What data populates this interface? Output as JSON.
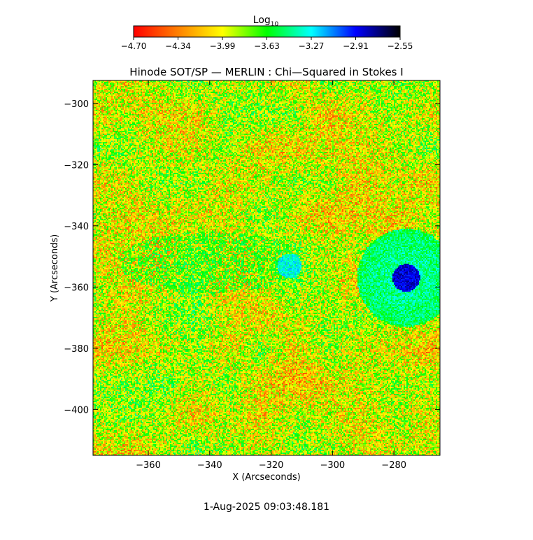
{
  "chart_data": {
    "type": "heatmap",
    "title": "Hinode SOT/SP — MERLIN : Chi—Squared in Stokes I",
    "xlabel": "X (Arcseconds)",
    "ylabel": "Y (Arcseconds)",
    "xlim": [
      -378,
      -265
    ],
    "ylim": [
      -415,
      -292.5
    ],
    "x_ticks": [
      -360,
      -340,
      -320,
      -300,
      -280
    ],
    "x_tick_labels": [
      "−360",
      "−340",
      "−320",
      "−300",
      "−280"
    ],
    "y_ticks": [
      -300,
      -320,
      -340,
      -360,
      -380,
      -400
    ],
    "y_tick_labels": [
      "−300",
      "−320",
      "−340",
      "−360",
      "−380",
      "−400"
    ],
    "colorbar": {
      "label_base": "Log",
      "label_sub": "10",
      "range": [
        -4.7,
        -2.55
      ],
      "ticks": [
        "−4.70",
        "−4.34",
        "−3.99",
        "−3.63",
        "−3.27",
        "−2.91",
        "−2.55"
      ],
      "colormap": [
        "#ff0000",
        "#ff8000",
        "#ffff00",
        "#00ff00",
        "#00ffff",
        "#0000ff",
        "#000000"
      ]
    },
    "value_range": [
      -4.7,
      -2.55
    ],
    "background_level": -3.95,
    "features": [
      {
        "label": "sunspot umbra",
        "x": -276,
        "y": -357,
        "level": -2.85
      },
      {
        "label": "penumbra",
        "x": -276,
        "y": -358,
        "level": -3.35
      },
      {
        "label": "pore",
        "x": -314,
        "y": -353,
        "level": -3.3
      },
      {
        "label": "network band",
        "x": -340,
        "y": -352,
        "level": -3.6
      }
    ]
  },
  "footer": {
    "timestamp": "1-Aug-2025 09:03:48.181"
  }
}
